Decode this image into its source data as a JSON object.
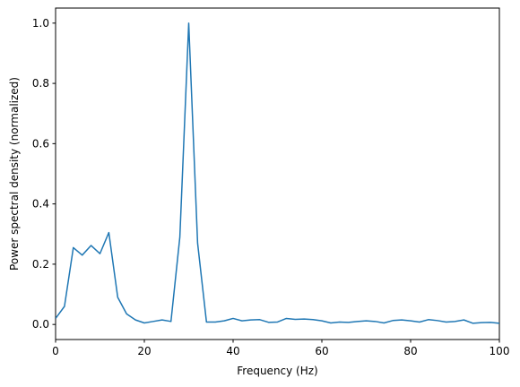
{
  "chart_data": {
    "type": "line",
    "xlabel": "Frequency (Hz)",
    "ylabel": "Power spectral density (normalized)",
    "x": [
      0,
      2,
      4,
      6,
      8,
      10,
      12,
      14,
      16,
      18,
      20,
      22,
      24,
      26,
      28,
      30,
      32,
      34,
      36,
      38,
      40,
      42,
      44,
      46,
      48,
      50,
      52,
      54,
      56,
      58,
      60,
      62,
      64,
      66,
      68,
      70,
      72,
      74,
      76,
      78,
      80,
      82,
      84,
      86,
      88,
      90,
      92,
      94,
      96,
      98,
      100
    ],
    "series": [
      {
        "color": "#1f77b4",
        "values": [
          0.02,
          0.06,
          0.255,
          0.23,
          0.262,
          0.235,
          0.305,
          0.09,
          0.035,
          0.015,
          0.005,
          0.01,
          0.015,
          0.01,
          0.29,
          1.0,
          0.27,
          0.008,
          0.008,
          0.012,
          0.02,
          0.012,
          0.015,
          0.016,
          0.007,
          0.008,
          0.02,
          0.017,
          0.018,
          0.016,
          0.012,
          0.005,
          0.008,
          0.007,
          0.01,
          0.012,
          0.01,
          0.005,
          0.013,
          0.015,
          0.012,
          0.008,
          0.016,
          0.013,
          0.008,
          0.01,
          0.015,
          0.004,
          0.006,
          0.007,
          0.004
        ]
      }
    ],
    "xlim": [
      0,
      100
    ],
    "ylim": [
      -0.05,
      1.05
    ],
    "xticks": [
      0,
      20,
      40,
      60,
      80,
      100
    ],
    "yticks": [
      {
        "value": 0,
        "label": "0.0"
      },
      0.2,
      0.4,
      0.6,
      0.8,
      {
        "value": 1,
        "label": "1.0"
      }
    ]
  }
}
